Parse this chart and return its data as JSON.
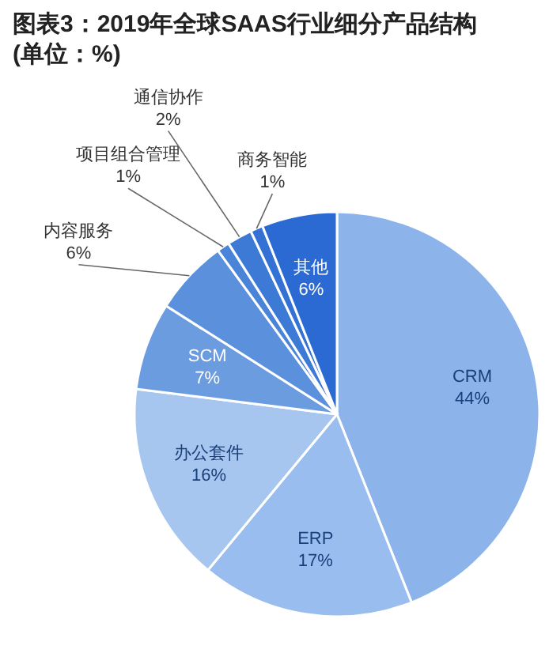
{
  "chart_data": {
    "type": "pie",
    "title": "图表3：2019年全球SAAS行业细分产品结构\n(单位：%)",
    "categories": [
      "CRM",
      "ERP",
      "办公套件",
      "SCM",
      "内容服务",
      "项目组合管理",
      "通信协作",
      "商务智能",
      "其他"
    ],
    "values": [
      44,
      17,
      16,
      7,
      6,
      1,
      2,
      1,
      6
    ],
    "colors": [
      "#8db4ea",
      "#99bdee",
      "#a6c6f0",
      "#6b9ce0",
      "#5a90dc",
      "#4a84d8",
      "#3d7ad6",
      "#3372d4",
      "#2a6ad2"
    ],
    "value_labels": [
      "44%",
      "17%",
      "16%",
      "7%",
      "6%",
      "1%",
      "2%",
      "1%",
      "6%"
    ],
    "legend": false
  }
}
